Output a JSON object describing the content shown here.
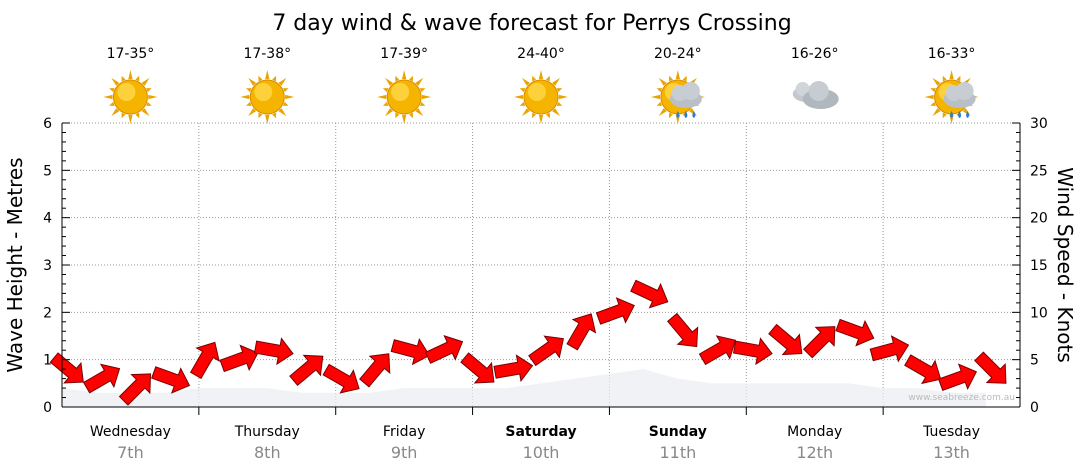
{
  "chart_data": {
    "type": "line",
    "title": "7 day wind & wave forecast for Perrys Crossing",
    "ylabel_left": "Wave Height - Metres",
    "ylabel_right": "Wind Speed - Knots",
    "ylim_left": [
      0,
      6
    ],
    "ylim_right": [
      0,
      30
    ],
    "yticks_left": [
      "0",
      "1",
      "2",
      "3",
      "4",
      "5",
      "6"
    ],
    "yticks_right": [
      "0",
      "5",
      "10",
      "15",
      "20",
      "25",
      "30"
    ],
    "grid": true,
    "days": [
      {
        "day": "Wednesday",
        "date": "7th",
        "temp": "17-35°",
        "icon": "sunny-icon",
        "bold": false
      },
      {
        "day": "Thursday",
        "date": "8th",
        "temp": "17-38°",
        "icon": "sunny-icon",
        "bold": false
      },
      {
        "day": "Friday",
        "date": "9th",
        "temp": "17-39°",
        "icon": "sunny-icon",
        "bold": false
      },
      {
        "day": "Saturday",
        "date": "10th",
        "temp": "24-40°",
        "icon": "sunny-icon",
        "bold": true
      },
      {
        "day": "Sunday",
        "date": "11th",
        "temp": "20-24°",
        "icon": "sun-cloud-rain-icon",
        "bold": true
      },
      {
        "day": "Monday",
        "date": "12th",
        "temp": "16-26°",
        "icon": "cloudy-icon",
        "bold": false
      },
      {
        "day": "Tuesday",
        "date": "13th",
        "temp": "16-33°",
        "icon": "sun-cloud-rain-icon",
        "bold": false
      }
    ],
    "series": [
      {
        "name": "Wind Speed",
        "units": "knots",
        "x_hours": [
          0,
          6,
          12,
          18,
          24,
          30,
          36,
          42,
          48,
          54,
          60,
          66,
          72,
          78,
          84,
          90,
          96,
          102,
          108,
          114,
          120,
          126,
          132,
          138,
          144,
          150,
          156,
          162
        ],
        "values": [
          4,
          3,
          2,
          3,
          5,
          5,
          6,
          4,
          3,
          4,
          6,
          6,
          4,
          4,
          6,
          8,
          10,
          12,
          8,
          6,
          6,
          7,
          7,
          8,
          6,
          4,
          3,
          4
        ]
      },
      {
        "name": "Wave Height",
        "units": "m",
        "values": [
          0.4,
          0.3,
          0.3,
          0.3,
          0.4,
          0.4,
          0.4,
          0.3,
          0.3,
          0.3,
          0.4,
          0.4,
          0.4,
          0.4,
          0.5,
          0.6,
          0.7,
          0.8,
          0.6,
          0.5,
          0.5,
          0.5,
          0.5,
          0.5,
          0.4,
          0.4,
          0.3,
          0.3
        ]
      }
    ]
  },
  "watermark": "www.seabreeze.com.au",
  "colors": {
    "arrow": "#ff0000",
    "arrow_stroke": "#7a0000",
    "grid": "#999999",
    "text_secondary": "#888888"
  }
}
